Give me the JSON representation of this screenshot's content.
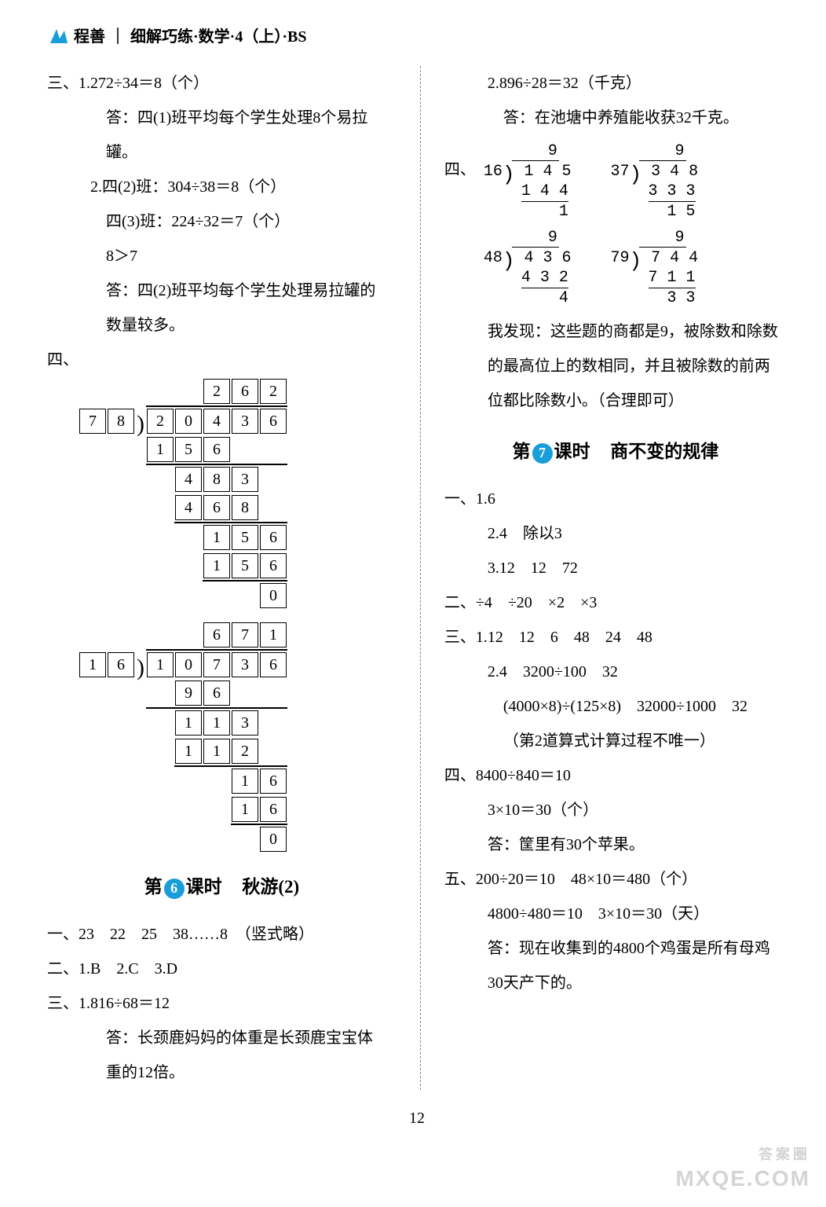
{
  "header": {
    "brand": "程善",
    "title": "细解巧练·数学·4（上）·BS",
    "icon_color": "#1a9ed9"
  },
  "left": {
    "p3_label": "三、",
    "p3_1_prefix": "1.",
    "p3_1_eq": "272÷34＝8（个）",
    "p3_1_ans": "答：四(1)班平均每个学生处理8个易拉罐。",
    "p3_2_prefix": "2.",
    "p3_2_l1": "四(2)班：304÷38＝8（个）",
    "p3_2_l2": "四(3)班：224÷32＝7（个）",
    "p3_2_l3": "8＞7",
    "p3_2_ans_a": "答：四(2)班平均每个学生处理易拉罐的",
    "p3_2_ans_b": "数量较多。",
    "p4_label": "四、",
    "boxdiv1": {
      "divisor": [
        "7",
        "8"
      ],
      "dividend": [
        "2",
        "0",
        "4",
        "3",
        "6"
      ],
      "quotient_pad": 2,
      "quotient": [
        "2",
        "6",
        "2"
      ],
      "steps": [
        {
          "pad": 2,
          "cells": [
            "1",
            "5",
            "6"
          ],
          "hr": true,
          "hr_from": 2,
          "hr_to": 7
        },
        {
          "pad": 3,
          "cells": [
            "4",
            "8",
            "3"
          ]
        },
        {
          "pad": 3,
          "cells": [
            "4",
            "6",
            "8"
          ],
          "hr": true,
          "hr_from": 3,
          "hr_to": 7
        },
        {
          "pad": 4,
          "cells": [
            "1",
            "5",
            "6"
          ]
        },
        {
          "pad": 4,
          "cells": [
            "1",
            "5",
            "6"
          ],
          "hr": true,
          "hr_from": 4,
          "hr_to": 7
        },
        {
          "pad": 6,
          "cells": [
            "0"
          ]
        }
      ]
    },
    "boxdiv2": {
      "divisor": [
        "1",
        "6"
      ],
      "dividend": [
        "1",
        "0",
        "7",
        "3",
        "6"
      ],
      "quotient_pad": 2,
      "quotient": [
        "6",
        "7",
        "1"
      ],
      "steps": [
        {
          "pad": 3,
          "cells": [
            "9",
            "6"
          ],
          "hr": true,
          "hr_from": 2,
          "hr_to": 7
        },
        {
          "pad": 3,
          "cells": [
            "1",
            "1",
            "3"
          ]
        },
        {
          "pad": 3,
          "cells": [
            "1",
            "1",
            "2"
          ],
          "hr": true,
          "hr_from": 3,
          "hr_to": 7
        },
        {
          "pad": 5,
          "cells": [
            "1",
            "6"
          ]
        },
        {
          "pad": 5,
          "cells": [
            "1",
            "6"
          ],
          "hr": true,
          "hr_from": 5,
          "hr_to": 7
        },
        {
          "pad": 6,
          "cells": [
            "0"
          ]
        }
      ]
    },
    "lesson6_prefix": "第",
    "lesson6_num": "6",
    "lesson6_mid": "课时",
    "lesson6_title": "秋游(2)",
    "a1": "一、23　22　25　38……8　（竖式略）",
    "a2": "二、1.B　2.C　3.D",
    "a3_label": "三、",
    "a3_1_prefix": "1.",
    "a3_1_eq": "816÷68＝12",
    "a3_1_ans_a": "答：长颈鹿妈妈的体重是长颈鹿宝宝体",
    "a3_1_ans_b": "重的12倍。"
  },
  "right": {
    "r2_prefix": "2.",
    "r2_eq": "896÷28＝32（千克）",
    "r2_ans": "答：在池塘中养殖能收获32千克。",
    "r4_label": "四、",
    "ld": [
      {
        "divisor": "16",
        "dividend": "145",
        "quotient": "9",
        "sub": "144",
        "rem": "1"
      },
      {
        "divisor": "37",
        "dividend": "348",
        "quotient": "9",
        "sub": "333",
        "rem": "15"
      },
      {
        "divisor": "48",
        "dividend": "436",
        "quotient": "9",
        "sub": "432",
        "rem": "4"
      },
      {
        "divisor": "79",
        "dividend": "744",
        "quotient": "9",
        "sub": "711",
        "rem": "33"
      }
    ],
    "discover_a": "我发现：这些题的商都是9，被除数和除数",
    "discover_b": "的最高位上的数相同，并且被除数的前两",
    "discover_c": "位都比除数小。（合理即可）",
    "lesson7_prefix": "第",
    "lesson7_num": "7",
    "lesson7_mid": "课时",
    "lesson7_title": "商不变的规律",
    "s1_label": "一、",
    "s1_1": "1.6",
    "s1_2": "2.4　除以3",
    "s1_3": "3.12　12　72",
    "s2": "二、÷4　÷20　×2　×3",
    "s3_label": "三、",
    "s3_1": "1.12　12　6　48　24　48",
    "s3_2a": "2.4　3200÷100　32",
    "s3_2b": "(4000×8)÷(125×8)　32000÷1000　32",
    "s3_2c": "（第2道算式计算过程不唯一）",
    "s4_a": "四、8400÷840＝10",
    "s4_b": "3×10＝30（个）",
    "s4_c": "答：筐里有30个苹果。",
    "s5_a": "五、200÷20＝10　48×10＝480（个）",
    "s5_b": "4800÷480＝10　3×10＝30（天）",
    "s5_c": "答：现在收集到的4800个鸡蛋是所有母鸡",
    "s5_d": "30天产下的。"
  },
  "page_number": "12",
  "watermark": {
    "logo": "答案圈",
    "url": "MXQE.COM"
  },
  "colors": {
    "circle6": "#1a9ed9",
    "circle7": "#1a9ed9"
  }
}
